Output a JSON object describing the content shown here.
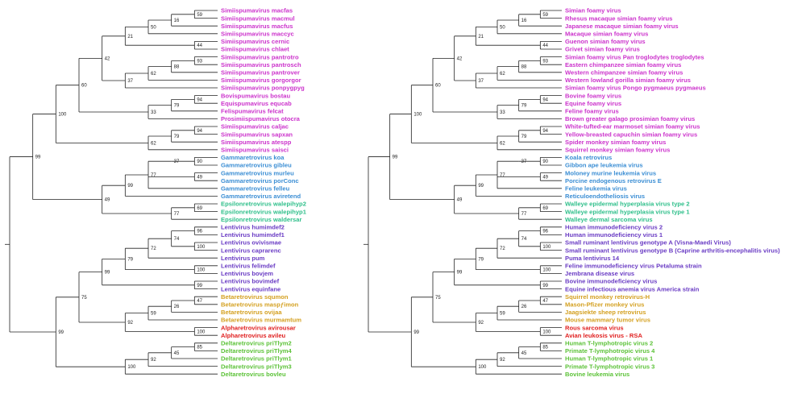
{
  "figure": {
    "description_colors": {
      "spumaretrovirinae": "#cc33cc",
      "gammaretrovirus": "#3b8ed4",
      "epsilonretrovirus": "#2ebf8a",
      "lentivirus": "#6a3cc4",
      "betaretrovirus": "#d4a020",
      "alpharetrovirus": "#e02020",
      "deltaretrovirus": "#5cc238",
      "branch": "#222222"
    },
    "trees": [
      {
        "id": "left",
        "taxa": [
          {
            "label": "Simiispumavirus macfas",
            "group": "spumaretrovirinae"
          },
          {
            "label": "Simiispumavirus macmul",
            "group": "spumaretrovirinae"
          },
          {
            "label": "Simiispumavirus macfus",
            "group": "spumaretrovirinae"
          },
          {
            "label": "Simiispumavirus maccyc",
            "group": "spumaretrovirinae"
          },
          {
            "label": "Simiispumavirus cernic",
            "group": "spumaretrovirinae"
          },
          {
            "label": "Simiispumavirus chlaet",
            "group": "spumaretrovirinae"
          },
          {
            "label": "Simiispumavirus pantrotro",
            "group": "spumaretrovirinae"
          },
          {
            "label": "Simiispumavirus pantrosch",
            "group": "spumaretrovirinae"
          },
          {
            "label": "Simiispumavirus pantrover",
            "group": "spumaretrovirinae"
          },
          {
            "label": "Simiispumavirus gorgorgor",
            "group": "spumaretrovirinae"
          },
          {
            "label": "Simiispumavirus ponpygpyg",
            "group": "spumaretrovirinae"
          },
          {
            "label": "Bovispumavirus bostau",
            "group": "spumaretrovirinae"
          },
          {
            "label": "Equispumavirus equcab",
            "group": "spumaretrovirinae"
          },
          {
            "label": "Felispumavirus felcat",
            "group": "spumaretrovirinae"
          },
          {
            "label": "Prosimiispumavirus otocra",
            "group": "spumaretrovirinae"
          },
          {
            "label": "Simiispumavirus caljac",
            "group": "spumaretrovirinae"
          },
          {
            "label": "Simiispumavirus sapxan",
            "group": "spumaretrovirinae"
          },
          {
            "label": "Simiispumavirus atespp",
            "group": "spumaretrovirinae"
          },
          {
            "label": "Simiispumavirus saisci",
            "group": "spumaretrovirinae"
          },
          {
            "label": "Gammaretrovirus koa",
            "group": "gammaretrovirus"
          },
          {
            "label": "Gammaretrovirus gibleu",
            "group": "gammaretrovirus"
          },
          {
            "label": "Gammaretrovirus murleu",
            "group": "gammaretrovirus"
          },
          {
            "label": "Gammaretrovirus porConc",
            "group": "gammaretrovirus"
          },
          {
            "label": "Gammaretrovirus felleu",
            "group": "gammaretrovirus"
          },
          {
            "label": "Gammaretrovirus aviretend",
            "group": "gammaretrovirus"
          },
          {
            "label": "Epsilonretrovirus walepihyp2",
            "group": "epsilonretrovirus"
          },
          {
            "label": "Epsilonretrovirus walepihyp1",
            "group": "epsilonretrovirus"
          },
          {
            "label": "Epsilonretrovirus waldersar",
            "group": "epsilonretrovirus"
          },
          {
            "label": "Lentivirus humimdef2",
            "group": "lentivirus"
          },
          {
            "label": "Lentivirus humimdef1",
            "group": "lentivirus"
          },
          {
            "label": "Lentivirus ovivismae",
            "group": "lentivirus"
          },
          {
            "label": "Lentivirus caprarenc",
            "group": "lentivirus"
          },
          {
            "label": "Lentivirus pum",
            "group": "lentivirus"
          },
          {
            "label": "Lentivirus felimdef",
            "group": "lentivirus"
          },
          {
            "label": "Lentivirus bovjem",
            "group": "lentivirus"
          },
          {
            "label": "Lentivirus bovimdef",
            "group": "lentivirus"
          },
          {
            "label": "Lentivirus equinfane",
            "group": "lentivirus"
          },
          {
            "label": "Betaretrovirus squmon",
            "group": "betaretrovirus"
          },
          {
            "label": "Betaretrovirus maspƒimon",
            "group": "betaretrovirus"
          },
          {
            "label": "Betaretrovirus ovijaa",
            "group": "betaretrovirus"
          },
          {
            "label": "Betaretrovirus murmamtum",
            "group": "betaretrovirus"
          },
          {
            "label": "Alpharetrovirus avirousar",
            "group": "alpharetrovirus"
          },
          {
            "label": "Alpharetrovirus avileu",
            "group": "alpharetrovirus"
          },
          {
            "label": "Deltaretrovirus priTlym2",
            "group": "deltaretrovirus"
          },
          {
            "label": "Deltaretrovirus priTlym4",
            "group": "deltaretrovirus"
          },
          {
            "label": "Deltaretrovirus priTlym1",
            "group": "deltaretrovirus"
          },
          {
            "label": "Deltaretrovirus priTlym3",
            "group": "deltaretrovirus"
          },
          {
            "label": "Deltaretrovirus bovleu",
            "group": "deltaretrovirus"
          }
        ]
      },
      {
        "id": "right",
        "taxa": [
          {
            "label": "Simian foamy virus",
            "group": "spumaretrovirinae"
          },
          {
            "label": "Rhesus macaque simian foamy virus",
            "group": "spumaretrovirinae"
          },
          {
            "label": "Japanese macaque simian foamy virus",
            "group": "spumaretrovirinae"
          },
          {
            "label": "Macaque simian foamy virus",
            "group": "spumaretrovirinae"
          },
          {
            "label": "Guenon simian foamy virus",
            "group": "spumaretrovirinae"
          },
          {
            "label": "Grivet simian foamy virus",
            "group": "spumaretrovirinae"
          },
          {
            "label": "Simian foamy virus Pan troglodytes troglodytes",
            "group": "spumaretrovirinae"
          },
          {
            "label": "Eastern chimpanzee simian foamy virus",
            "group": "spumaretrovirinae"
          },
          {
            "label": "Western chimpanzee simian foamy virus",
            "group": "spumaretrovirinae"
          },
          {
            "label": "Western lowland gorilla simian foamy virus",
            "group": "spumaretrovirinae"
          },
          {
            "label": "Simian foamy virus Pongo pygmaeus pygmaeus",
            "group": "spumaretrovirinae"
          },
          {
            "label": "Bovine foamy virus",
            "group": "spumaretrovirinae"
          },
          {
            "label": "Equine foamy virus",
            "group": "spumaretrovirinae"
          },
          {
            "label": "Feline foamy virus",
            "group": "spumaretrovirinae"
          },
          {
            "label": "Brown greater galago prosimian foamy virus",
            "group": "spumaretrovirinae"
          },
          {
            "label": "White-tufted-ear marmoset simian foamy virus",
            "group": "spumaretrovirinae"
          },
          {
            "label": "Yellow-breasted capuchin simian foamy virus",
            "group": "spumaretrovirinae"
          },
          {
            "label": "Spider monkey simian foamy virus",
            "group": "spumaretrovirinae"
          },
          {
            "label": "Squirrel monkey simian foamy virus",
            "group": "spumaretrovirinae"
          },
          {
            "label": "Koala retrovirus",
            "group": "gammaretrovirus"
          },
          {
            "label": "Gibbon ape leukemia virus",
            "group": "gammaretrovirus"
          },
          {
            "label": "Moloney murine leukemia virus",
            "group": "gammaretrovirus"
          },
          {
            "label": "Porcine endogenous retrovirus E",
            "group": "gammaretrovirus"
          },
          {
            "label": "Feline leukemia virus",
            "group": "gammaretrovirus"
          },
          {
            "label": "Reticuloendotheliosis virus",
            "group": "gammaretrovirus"
          },
          {
            "label": "Walleye epidermal hyperplasia virus type 2",
            "group": "epsilonretrovirus"
          },
          {
            "label": "Walleye epidermal hyperplasia virus type 1",
            "group": "epsilonretrovirus"
          },
          {
            "label": "Walleye dermal sarcoma virus",
            "group": "epsilonretrovirus"
          },
          {
            "label": "Human immunodeficiency virus 2",
            "group": "lentivirus"
          },
          {
            "label": "Human immunodeficiency virus 1",
            "group": "lentivirus"
          },
          {
            "label": "Small ruminant lentivirus genotype A (Visna-Maedi Virus)",
            "group": "lentivirus"
          },
          {
            "label": "Small ruminant lentivirus genotype B (Caprine arthritis-encephalitis virus)",
            "group": "lentivirus"
          },
          {
            "label": "Puma lentivirus 14",
            "group": "lentivirus"
          },
          {
            "label": "Feline immunodeficiency virus Petaluma strain",
            "group": "lentivirus"
          },
          {
            "label": "Jembrana disease virus",
            "group": "lentivirus"
          },
          {
            "label": "Bovine immunodeficiency virus",
            "group": "lentivirus"
          },
          {
            "label": "Equine infectious anemia virus America strain",
            "group": "lentivirus"
          },
          {
            "label": "Squirrel monkey retrovirus-H",
            "group": "betaretrovirus"
          },
          {
            "label": "Mason-Pfizer monkey virus",
            "group": "betaretrovirus"
          },
          {
            "label": "Jaagsiekte sheep retrovirus",
            "group": "betaretrovirus"
          },
          {
            "label": "Mouse mammary tumor virus",
            "group": "betaretrovirus"
          },
          {
            "label": "Rous sarcoma virus",
            "group": "alpharetrovirus"
          },
          {
            "label": "Avian leukosis virus - RSA",
            "group": "alpharetrovirus"
          },
          {
            "label": "Human T-lymphotropic virus 2",
            "group": "deltaretrovirus"
          },
          {
            "label": "Primate T-lymphotropic virus 4",
            "group": "deltaretrovirus"
          },
          {
            "label": "Human T-lymphotropic virus 1",
            "group": "deltaretrovirus"
          },
          {
            "label": "Primate T-lymphotropic virus 3",
            "group": "deltaretrovirus"
          },
          {
            "label": "Bovine leukemia virus",
            "group": "deltaretrovirus"
          }
        ]
      }
    ],
    "support_values": {
      "spuma_macaque_59": "59",
      "spuma_macaque_16": "16",
      "spuma_macaque_50": "50",
      "spuma_old_world_21": "21",
      "spuma_african_44": "44",
      "spuma_ape_93": "93",
      "spuma_chimp_88": "88",
      "spuma_ape_62": "62",
      "spuma_ape_37": "37",
      "spuma_old_world_42": "42",
      "spuma_non_primate_94": "94",
      "spuma_non_primate_79": "79",
      "spuma_non_primate_33": "33",
      "spuma_old_world_60": "60",
      "spuma_new_world_94": "94",
      "spuma_new_world_79": "79",
      "spuma_new_world_62": "62",
      "spuma_root_100": "100",
      "gamma_90": "90",
      "gamma_37": "37",
      "gamma_49": "49",
      "gamma_77": "77",
      "gamma_99": "99",
      "epsilon_69": "69",
      "epsilon_77": "77",
      "gamma_epsilon_root_49": "49",
      "root_99": "99",
      "lenti_96": "96",
      "lenti_74": "74",
      "lenti_100a": "100",
      "lenti_72": "72",
      "lenti_100b": "100",
      "lenti_79": "79",
      "lenti_99": "99",
      "lenti_root_99": "99",
      "beta_47": "47",
      "beta_26": "26",
      "beta_59": "59",
      "beta_92": "92",
      "alpha_100": "100",
      "beta_alpha_75": "75",
      "delta_85": "85",
      "delta_45": "45",
      "delta_92": "92",
      "delta_100": "100",
      "lower_root_99": "99"
    }
  }
}
